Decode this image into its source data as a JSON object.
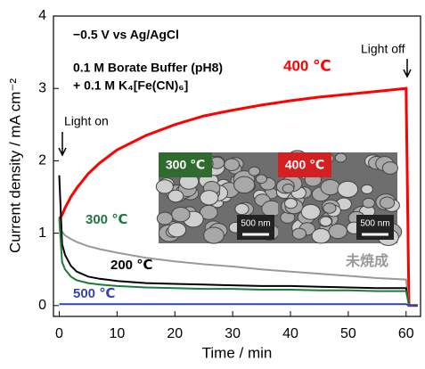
{
  "chart_data": {
    "type": "line",
    "xlabel": "Time / min",
    "ylabel": "Current density / mA cm⁻²",
    "x": [
      0,
      0.5,
      1,
      2,
      3,
      5,
      7,
      10,
      15,
      20,
      25,
      30,
      35,
      40,
      45,
      50,
      55,
      60,
      60.5,
      62
    ],
    "series": [
      {
        "name": "400 ℃",
        "color": "#ff0000",
        "values": [
          1.2,
          1.25,
          1.35,
          1.5,
          1.62,
          1.82,
          1.97,
          2.15,
          2.35,
          2.5,
          2.62,
          2.7,
          2.77,
          2.83,
          2.88,
          2.92,
          2.96,
          3.0,
          0,
          0
        ]
      },
      {
        "name": "未焼成",
        "color": "#999999",
        "values": [
          1.1,
          1.02,
          0.97,
          0.92,
          0.88,
          0.82,
          0.78,
          0.73,
          0.66,
          0.61,
          0.57,
          0.54,
          0.5,
          0.47,
          0.44,
          0.41,
          0.38,
          0.36,
          0,
          0
        ]
      },
      {
        "name": "200 ℃",
        "color": "#000000",
        "values": [
          1.8,
          0.85,
          0.7,
          0.55,
          0.47,
          0.4,
          0.37,
          0.34,
          0.31,
          0.3,
          0.29,
          0.28,
          0.27,
          0.27,
          0.26,
          0.25,
          0.24,
          0.24,
          0,
          0
        ]
      },
      {
        "name": "300 ℃",
        "color": "#1e7a3a",
        "values": [
          1.2,
          0.6,
          0.5,
          0.4,
          0.35,
          0.31,
          0.29,
          0.27,
          0.25,
          0.24,
          0.23,
          0.23,
          0.22,
          0.22,
          0.21,
          0.21,
          0.2,
          0.2,
          0,
          0
        ]
      },
      {
        "name": "500 ℃",
        "color": "#3344aa",
        "values": [
          0.02,
          0.02,
          0.02,
          0.02,
          0.02,
          0.02,
          0.02,
          0.02,
          0.02,
          0.02,
          0.02,
          0.02,
          0.02,
          0.02,
          0.02,
          0.02,
          0.02,
          0.02,
          0,
          0
        ]
      }
    ],
    "xlim": [
      -1,
      62.5
    ],
    "ylim": [
      -0.15,
      4
    ],
    "xticks": [
      0,
      10,
      20,
      30,
      40,
      50,
      60
    ],
    "yticks": [
      0,
      1,
      2,
      3,
      4
    ],
    "annotations": [
      "−0.5 V vs Ag/AgCl",
      "0.1 M Borate Buffer (pH8)",
      "+ 0.1 M K₄[Fe(CN)₆]",
      "Light on",
      "Light off"
    ],
    "insets": [
      {
        "label": "300 ℃",
        "color": "#2f6b2f",
        "scale": "500 nm"
      },
      {
        "label": "400 ℃",
        "color": "#d42020",
        "scale": "500 nm"
      }
    ]
  }
}
